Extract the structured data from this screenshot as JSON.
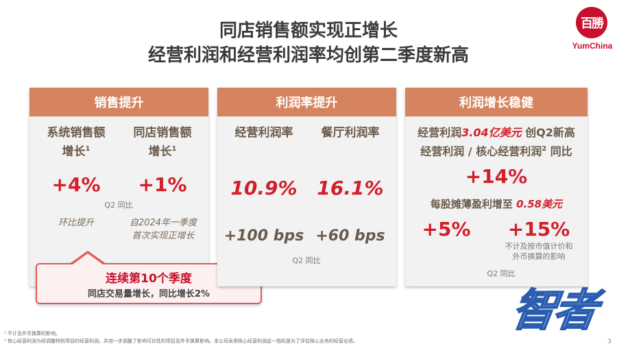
{
  "header": {
    "title_line1": "同店销售额实现正增长",
    "title_line2": "经营利润和经营利润率均创第二季度新高"
  },
  "logo": {
    "chars": "百勝",
    "brand": "YumChina"
  },
  "panel_sales": {
    "heading": "销售提升",
    "col1_label_a": "系统销售额",
    "col1_label_b": "增长",
    "col1_sup": "1",
    "col1_value": "+4%",
    "col2_label_a": "同店销售额",
    "col2_label_b": "增长",
    "col2_sup": "1",
    "col2_value": "+1%",
    "period": "Q2 同比",
    "col1_note": "环比提升",
    "col2_note_a": "自2024年一季度",
    "col2_note_b": "首次实现正增长"
  },
  "callout": {
    "title": "连续第10个季度",
    "subtitle": "同店交易量增长，同比增长2%"
  },
  "panel_margin": {
    "heading": "利润率提升",
    "col1_label": "经营利润率",
    "col2_label": "餐厅利润率",
    "col1_value": "10.9%",
    "col2_value": "16.1%",
    "col1_delta": "+100 bps",
    "col2_delta": "+60 bps",
    "period": "Q2 同比"
  },
  "panel_profit": {
    "heading": "利润增长稳健",
    "line1_a": "经营利润",
    "line1_amount": "3.04亿美元",
    "line1_b": " 创Q2新高",
    "line2": "经营利润 / 核心经营利润",
    "line2_sup": "2",
    "line2_b": " 同比",
    "value_main": "+14%",
    "eps_a": "每股摊薄盈利增至 ",
    "eps_amount": "0.58美元",
    "value_left": "+5%",
    "value_right": "+15%",
    "note_a": "不计及按市值计价和",
    "note_b": "外币换算的影响",
    "period": "Q2 同比"
  },
  "footnotes": {
    "fn1": "¹ 不计及外币换算的影响。",
    "fn2": "² 核心经营利润为经调整特别项目的经营利润，并进一步调整了影响可比性的项目及外币换算影响。本公司采用核心经营利润这一指标是为了评估核心业务的经营业绩。"
  },
  "page_number": "3",
  "watermark": "智者"
}
